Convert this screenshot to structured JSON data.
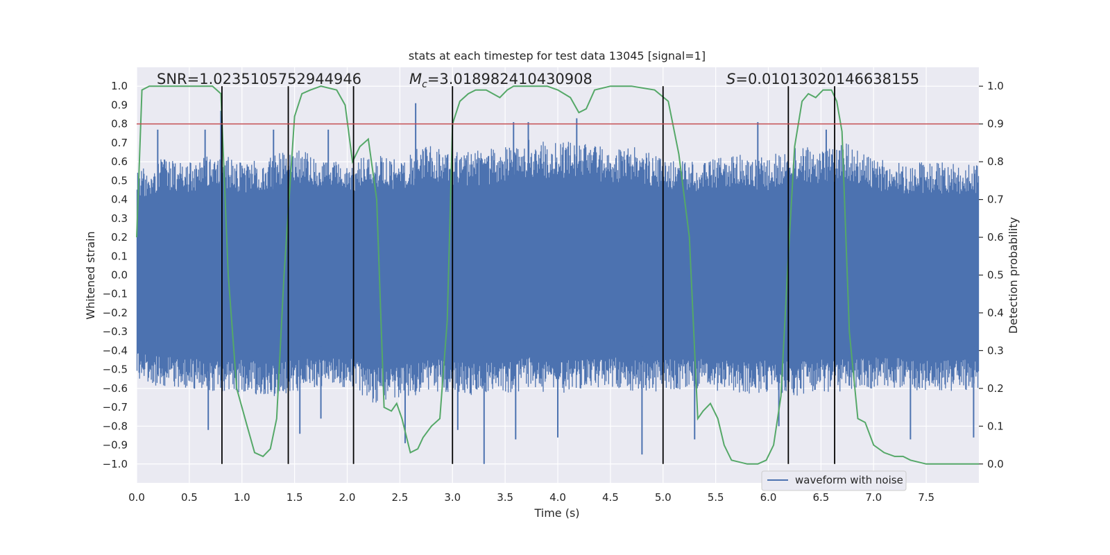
{
  "chart_data": {
    "type": "line",
    "title": "stats at each timestep for test data 13045 [signal=1]",
    "xlabel": "Time (s)",
    "ylabel_left": "Whitened strain",
    "ylabel_right": "Detection probability",
    "xlim": [
      0,
      8
    ],
    "ylim_left": [
      -1.1,
      1.1
    ],
    "ylim_right": [
      -0.05,
      1.05
    ],
    "x_ticks": [
      "0.0",
      "0.5",
      "1.0",
      "1.5",
      "2.0",
      "2.5",
      "3.0",
      "3.5",
      "4.0",
      "4.5",
      "5.0",
      "5.5",
      "6.0",
      "6.5",
      "7.0",
      "7.5"
    ],
    "y_ticks_left": [
      "1.0",
      "0.9",
      "0.8",
      "0.7",
      "0.6",
      "0.5",
      "0.4",
      "0.3",
      "0.2",
      "0.1",
      "0.0",
      "−0.1",
      "−0.2",
      "−0.3",
      "−0.4",
      "−0.5",
      "−0.6",
      "−0.7",
      "−0.8",
      "−0.9",
      "−1.0"
    ],
    "y_ticks_right": [
      "1.0",
      "0.9",
      "0.8",
      "0.7",
      "0.6",
      "0.5",
      "0.4",
      "0.3",
      "0.2",
      "0.1",
      "0.0"
    ],
    "annotations": {
      "snr": "SNR=1.0235105752944946",
      "mc_sym": "M",
      "mc_sub": "c",
      "mc_val": "=3.018982410430908",
      "s_sym": "S",
      "s_val": "=0.01013020146638155"
    },
    "legend": {
      "position": "lower-right",
      "entries": [
        "waveform with noise"
      ]
    },
    "threshold": {
      "value": 0.9,
      "axis": "right",
      "color": "#c44e52"
    },
    "event_times": [
      0.81,
      1.44,
      2.06,
      3.0,
      5.0,
      6.19,
      6.63
    ],
    "colors": {
      "waveform": "#4c72b0",
      "probability": "#55a868",
      "background": "#eaeaf2",
      "event_lines": "#000000"
    },
    "series": [
      {
        "name": "waveform with noise",
        "axis": "left",
        "envelope_x": [
          0.0,
          0.25,
          0.5,
          0.75,
          1.0,
          1.25,
          1.5,
          1.75,
          2.0,
          2.25,
          2.5,
          2.75,
          3.0,
          3.25,
          3.5,
          3.75,
          4.0,
          4.25,
          4.5,
          4.75,
          5.0,
          5.25,
          5.5,
          5.75,
          6.0,
          6.25,
          6.5,
          6.75,
          7.0,
          7.25,
          7.5,
          7.75,
          8.0
        ],
        "envelope_upper": [
          0.55,
          0.62,
          0.6,
          0.65,
          0.6,
          0.62,
          0.68,
          0.62,
          0.6,
          0.65,
          0.62,
          0.7,
          0.65,
          0.66,
          0.68,
          0.72,
          0.7,
          0.72,
          0.66,
          0.68,
          0.62,
          0.6,
          0.62,
          0.64,
          0.62,
          0.7,
          0.66,
          0.7,
          0.62,
          0.6,
          0.6,
          0.6,
          0.58
        ],
        "envelope_lower": [
          -0.55,
          -0.6,
          -0.6,
          -0.62,
          -0.62,
          -0.65,
          -0.62,
          -0.6,
          -0.6,
          -0.68,
          -0.66,
          -0.62,
          -0.62,
          -0.64,
          -0.64,
          -0.6,
          -0.64,
          -0.6,
          -0.6,
          -0.62,
          -0.62,
          -0.6,
          -0.62,
          -0.64,
          -0.62,
          -0.64,
          -0.62,
          -0.62,
          -0.6,
          -0.6,
          -0.62,
          -0.62,
          -0.6
        ],
        "peaks": [
          {
            "x": 0.2,
            "y": 0.77
          },
          {
            "x": 0.65,
            "y": 0.77
          },
          {
            "x": 0.8,
            "y": 0.87
          },
          {
            "x": 1.3,
            "y": 0.77
          },
          {
            "x": 1.82,
            "y": 0.77
          },
          {
            "x": 2.65,
            "y": 0.91
          },
          {
            "x": 3.58,
            "y": 0.81
          },
          {
            "x": 3.72,
            "y": 0.81
          },
          {
            "x": 4.18,
            "y": 0.83
          },
          {
            "x": 5.9,
            "y": 0.81
          },
          {
            "x": 6.55,
            "y": 0.77
          },
          {
            "x": 0.68,
            "y": -0.82
          },
          {
            "x": 1.55,
            "y": -0.84
          },
          {
            "x": 1.75,
            "y": -0.76
          },
          {
            "x": 2.55,
            "y": -0.89
          },
          {
            "x": 3.05,
            "y": -0.82
          },
          {
            "x": 3.3,
            "y": -1.0
          },
          {
            "x": 3.6,
            "y": -0.87
          },
          {
            "x": 4.0,
            "y": -0.86
          },
          {
            "x": 4.8,
            "y": -0.95
          },
          {
            "x": 5.3,
            "y": -0.87
          },
          {
            "x": 6.1,
            "y": -0.8
          },
          {
            "x": 7.35,
            "y": -0.87
          },
          {
            "x": 7.95,
            "y": -0.86
          }
        ]
      },
      {
        "name": "",
        "axis": "right",
        "x": [
          0.0,
          0.05,
          0.12,
          0.3,
          0.5,
          0.72,
          0.8,
          0.87,
          0.95,
          1.05,
          1.12,
          1.2,
          1.27,
          1.33,
          1.4,
          1.5,
          1.57,
          1.65,
          1.75,
          1.9,
          1.98,
          2.05,
          2.12,
          2.2,
          2.28,
          2.35,
          2.42,
          2.47,
          2.52,
          2.6,
          2.67,
          2.72,
          2.8,
          2.88,
          2.95,
          3.0,
          3.07,
          3.15,
          3.22,
          3.32,
          3.45,
          3.52,
          3.58,
          3.75,
          3.9,
          4.0,
          4.12,
          4.2,
          4.27,
          4.35,
          4.5,
          4.7,
          4.92,
          5.05,
          5.15,
          5.25,
          5.33,
          5.38,
          5.45,
          5.52,
          5.58,
          5.65,
          5.8,
          5.9,
          5.98,
          6.05,
          6.12,
          6.19,
          6.25,
          6.32,
          6.38,
          6.45,
          6.52,
          6.6,
          6.65,
          6.7,
          6.77,
          6.85,
          6.92,
          7.0,
          7.1,
          7.2,
          7.28,
          7.35,
          7.5,
          7.7,
          8.0
        ],
        "values": [
          0.6,
          0.99,
          1.0,
          1.0,
          1.0,
          1.0,
          0.98,
          0.5,
          0.2,
          0.1,
          0.03,
          0.02,
          0.04,
          0.12,
          0.5,
          0.92,
          0.98,
          0.99,
          1.0,
          0.99,
          0.95,
          0.8,
          0.84,
          0.86,
          0.7,
          0.15,
          0.14,
          0.16,
          0.12,
          0.03,
          0.04,
          0.07,
          0.1,
          0.12,
          0.38,
          0.9,
          0.96,
          0.98,
          0.99,
          0.99,
          0.97,
          0.99,
          1.0,
          1.0,
          1.0,
          0.99,
          0.97,
          0.93,
          0.94,
          0.99,
          1.0,
          1.0,
          0.99,
          0.96,
          0.82,
          0.6,
          0.12,
          0.14,
          0.16,
          0.12,
          0.05,
          0.01,
          0.0,
          0.0,
          0.01,
          0.05,
          0.18,
          0.55,
          0.84,
          0.96,
          0.98,
          0.97,
          0.99,
          0.99,
          0.96,
          0.88,
          0.35,
          0.12,
          0.11,
          0.05,
          0.03,
          0.02,
          0.02,
          0.01,
          0.0,
          0.0,
          0.0
        ]
      }
    ]
  }
}
